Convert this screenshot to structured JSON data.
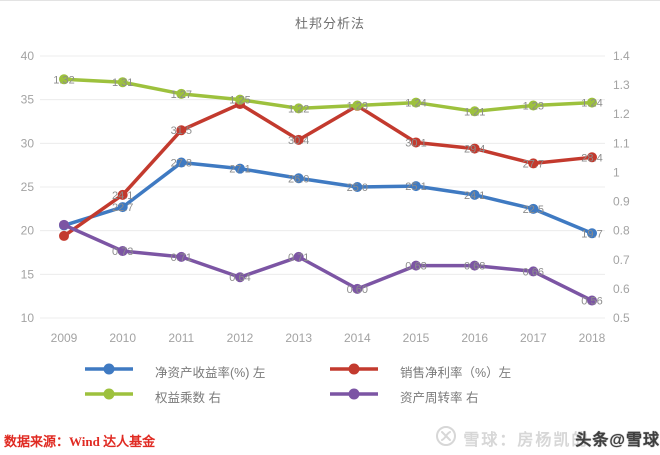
{
  "title": "杜邦分析法",
  "source_note": "数据来源：Wind 达人基金",
  "watermark": {
    "logo": "xueqiu-circle-x",
    "brand": "雪球：房杨凯的",
    "overlay": "头条@雪球"
  },
  "chart_data": {
    "type": "line",
    "title": "杜邦分析法",
    "categories": [
      "2009",
      "2010",
      "2011",
      "2012",
      "2013",
      "2014",
      "2015",
      "2016",
      "2017",
      "2018"
    ],
    "left_axis": {
      "min": 10,
      "max": 40,
      "ticks": [
        "40",
        "35",
        "30",
        "25",
        "20",
        "15",
        "10"
      ]
    },
    "right_axis": {
      "min": 0.5,
      "max": 1.4,
      "ticks": [
        "1.4",
        "1.3",
        "1.2",
        "1.1",
        "1",
        "0.9",
        "0.8",
        "0.7",
        "0.6",
        "0.5"
      ]
    },
    "grid": true,
    "legend_position": "bottom",
    "series": [
      {
        "name": "净资产收益率(%) 左",
        "axis": "left",
        "color": "#3f7ac2",
        "values": [
          20.6,
          22.7,
          27.8,
          27.1,
          26.0,
          25.0,
          25.1,
          24.1,
          22.5,
          19.7
        ],
        "labels": [
          "",
          "22.7",
          "27.8",
          "27.1",
          "26.0",
          "25.0",
          "25.1",
          "24.1",
          "22.5",
          "19.7"
        ]
      },
      {
        "name": "销售净利率（%）左",
        "axis": "left",
        "color": "#c33a2e",
        "values": [
          19.4,
          24.1,
          31.5,
          34.5,
          30.4,
          34.3,
          30.1,
          29.4,
          27.7,
          28.4
        ],
        "labels": [
          "",
          "24.1",
          "31.5",
          "",
          "30.4",
          "",
          "30.1",
          "29.4",
          "27.7",
          "28.4"
        ]
      },
      {
        "name": "权益乘数 右",
        "axis": "right",
        "color": "#9dc13d",
        "values": [
          1.32,
          1.31,
          1.27,
          1.25,
          1.22,
          1.23,
          1.24,
          1.21,
          1.23,
          1.24
        ],
        "labels": [
          "1.32",
          "1.31",
          "1.27",
          "1.25",
          "1.22",
          "1.23",
          "1.24",
          "1.21",
          "1.23",
          "1.24"
        ]
      },
      {
        "name": "资产周转率 右",
        "axis": "right",
        "color": "#7c55a4",
        "values": [
          0.82,
          0.73,
          0.71,
          0.64,
          0.71,
          0.6,
          0.68,
          0.68,
          0.66,
          0.56
        ],
        "labels": [
          "",
          "0.73",
          "0.71",
          "0.64",
          "0.71",
          "0.60",
          "0.68",
          "0.68",
          "0.66",
          "0.56"
        ]
      }
    ],
    "point_label_color": "#8c8c8c",
    "axis_label_color": "#a3a3a3",
    "grid_color": "#ececec"
  }
}
